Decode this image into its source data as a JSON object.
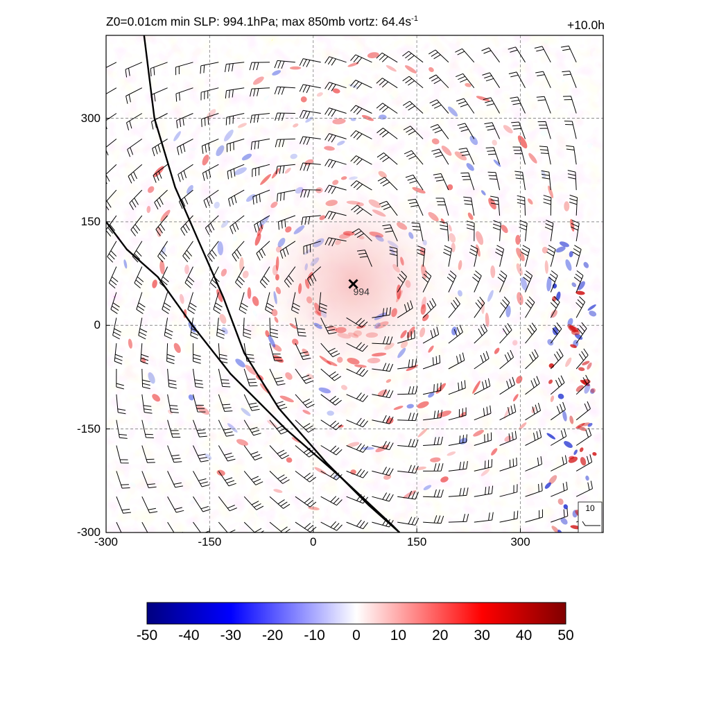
{
  "title": {
    "left_main": "Z0=0.01cm  min SLP: 994.1hPa; max 850mb vortz:  64.4s",
    "left_sup": "-1",
    "right": "+10.0h"
  },
  "chart_data": {
    "type": "heatmap",
    "x_ticks": [
      "-300",
      "-150",
      "0",
      "150",
      "300"
    ],
    "y_ticks": [
      "-300",
      "-150",
      "0",
      "150",
      "300"
    ],
    "xlim": [
      -300,
      420
    ],
    "ylim": [
      -300,
      420
    ],
    "grid": true,
    "storm_center": {
      "x": 58,
      "y": 60,
      "label": "994"
    },
    "colorbar": {
      "ticks": [
        "-50",
        "-40",
        "-30",
        "-20",
        "-10",
        "0",
        "10",
        "20",
        "30",
        "40",
        "50"
      ],
      "range": [
        -50,
        50
      ],
      "colors": [
        "#000080",
        "#0000ff",
        "#ffffff",
        "#ff0000",
        "#800000"
      ]
    },
    "reference_barb_label": "10",
    "boundary_lines": [
      [
        [
          -245,
          420
        ],
        [
          -230,
          300
        ],
        [
          -200,
          200
        ],
        [
          -165,
          120
        ],
        [
          -130,
          40
        ],
        [
          -100,
          -40
        ],
        [
          -50,
          -120
        ],
        [
          20,
          -200
        ],
        [
          80,
          -260
        ],
        [
          125,
          -300
        ]
      ],
      [
        [
          -300,
          150
        ],
        [
          -270,
          110
        ],
        [
          -225,
          70
        ],
        [
          -175,
          0
        ],
        [
          -120,
          -70
        ],
        [
          -40,
          -150
        ],
        [
          40,
          -220
        ],
        [
          115,
          -290
        ],
        [
          125,
          -300
        ]
      ]
    ]
  }
}
